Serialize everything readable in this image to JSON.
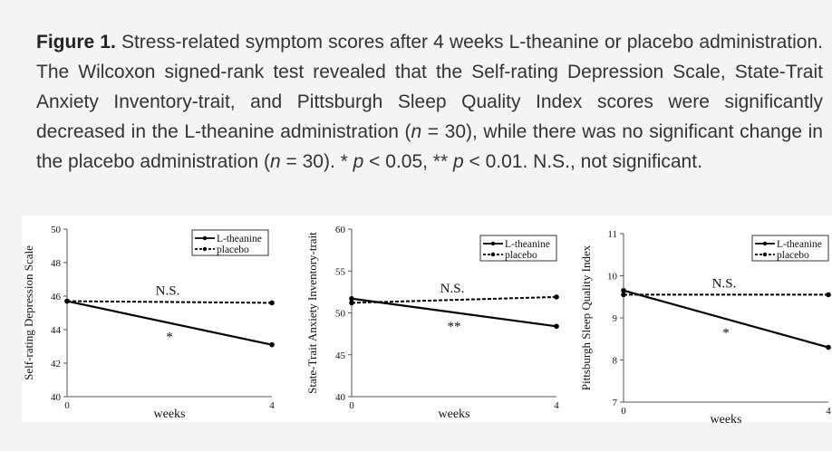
{
  "caption": {
    "label": "Figure 1.",
    "parts": [
      "Stress-related symptom scores after 4 weeks L-theanine or placebo administration. The Wilcoxon signed-rank test revealed that the Self-rating Depression Scale, State-Trait Anxiety Inventory-trait, and Pittsburgh Sleep Quality Index scores were significantly decreased in the L-theanine administration (",
      "n",
      " = 30), while there was no significant change in the placebo administration (",
      "n",
      " = 30). * ",
      "p",
      " < 0.05, ** ",
      "p",
      " < 0.01. N.S., not significant."
    ]
  },
  "chart_data": [
    {
      "type": "line",
      "ylabel": "Self-rating Depression Scale",
      "xlabel": "weeks",
      "x": [
        0,
        4
      ],
      "xticks": [
        "0",
        "4"
      ],
      "ylim": [
        40,
        50
      ],
      "yticks": [
        40,
        42,
        44,
        46,
        48,
        50
      ],
      "series": [
        {
          "name": "L-theanine",
          "style": "solid",
          "values": [
            45.7,
            43.1
          ]
        },
        {
          "name": "placebo",
          "style": "dashed",
          "values": [
            45.7,
            45.6
          ]
        }
      ],
      "annotations": {
        "ns": "N.S.",
        "sig": "*"
      },
      "legend": "top-right"
    },
    {
      "type": "line",
      "ylabel": "State-Trait Anxiety Inventory-trait",
      "xlabel": "weeks",
      "x": [
        0,
        4
      ],
      "xticks": [
        "0",
        "4"
      ],
      "ylim": [
        40,
        60
      ],
      "yticks": [
        40,
        45,
        50,
        55,
        60
      ],
      "series": [
        {
          "name": "L-theanine",
          "style": "solid",
          "values": [
            51.7,
            48.4
          ]
        },
        {
          "name": "placebo",
          "style": "dashed",
          "values": [
            51.2,
            51.9
          ]
        }
      ],
      "annotations": {
        "ns": "N.S.",
        "sig": "**"
      },
      "legend": "top-right"
    },
    {
      "type": "line",
      "ylabel": "Pittsburgh Sleep Quality Index",
      "xlabel": "weeks",
      "x": [
        0,
        4
      ],
      "xticks": [
        "0",
        "4"
      ],
      "ylim": [
        7,
        11
      ],
      "yticks": [
        7,
        8,
        9,
        10,
        11
      ],
      "series": [
        {
          "name": "L-theanine",
          "style": "solid",
          "values": [
            9.65,
            8.3
          ]
        },
        {
          "name": "placebo",
          "style": "dashed",
          "values": [
            9.55,
            9.55
          ]
        }
      ],
      "annotations": {
        "ns": "N.S.",
        "sig": "*"
      },
      "legend": "top-right"
    }
  ]
}
